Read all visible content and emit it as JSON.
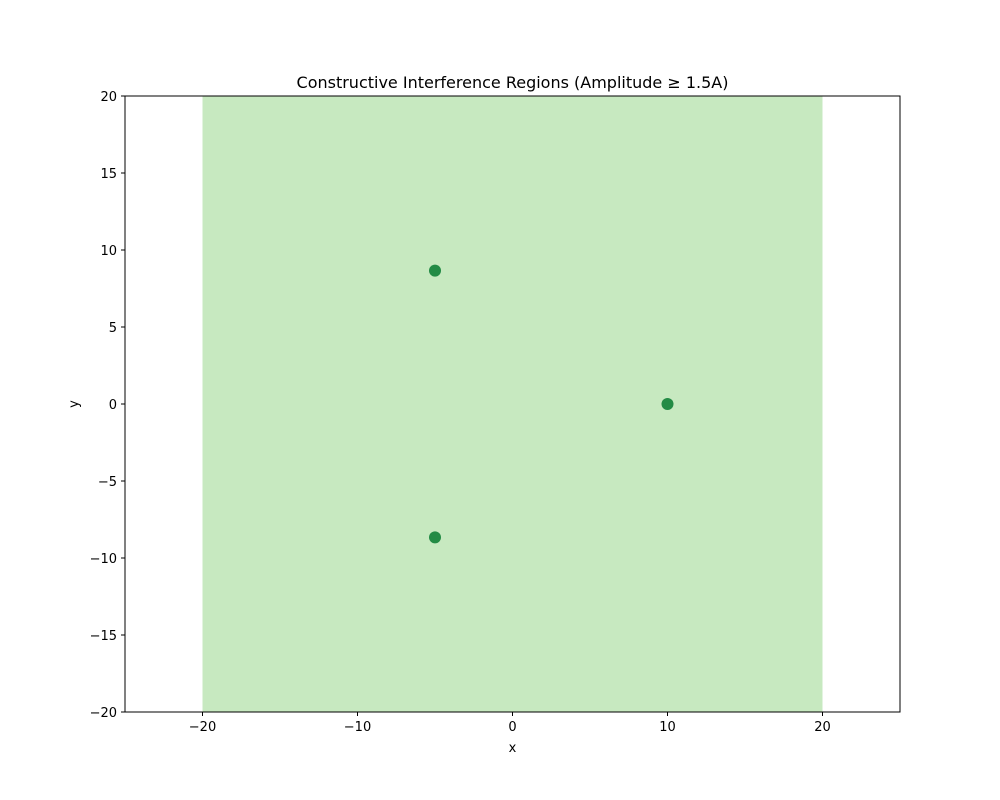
{
  "chart_data": {
    "type": "heatmap",
    "title": "Constructive Interference Regions (Amplitude ≥ 1.5A)",
    "xlabel": "x",
    "ylabel": "y",
    "xlim": [
      -25,
      25
    ],
    "ylim": [
      -20,
      20
    ],
    "xticks": [
      -20,
      -10,
      0,
      10,
      20
    ],
    "yticks": [
      -20,
      -15,
      -10,
      -5,
      0,
      5,
      10,
      15,
      20
    ],
    "xtick_labels": [
      "−20",
      "−10",
      "0",
      "10",
      "20"
    ],
    "ytick_labels": [
      "−20",
      "−15",
      "−10",
      "−5",
      "0",
      "5",
      "10",
      "15",
      "20"
    ],
    "grid": false,
    "region": {
      "x": [
        -20,
        20
      ],
      "y": [
        -20,
        20
      ],
      "color": "#c7e9c0"
    },
    "points": [
      {
        "x": -5,
        "y": 8.66
      },
      {
        "x": 10,
        "y": 0
      },
      {
        "x": -5,
        "y": -8.66
      }
    ],
    "point_color": "#238b45"
  }
}
